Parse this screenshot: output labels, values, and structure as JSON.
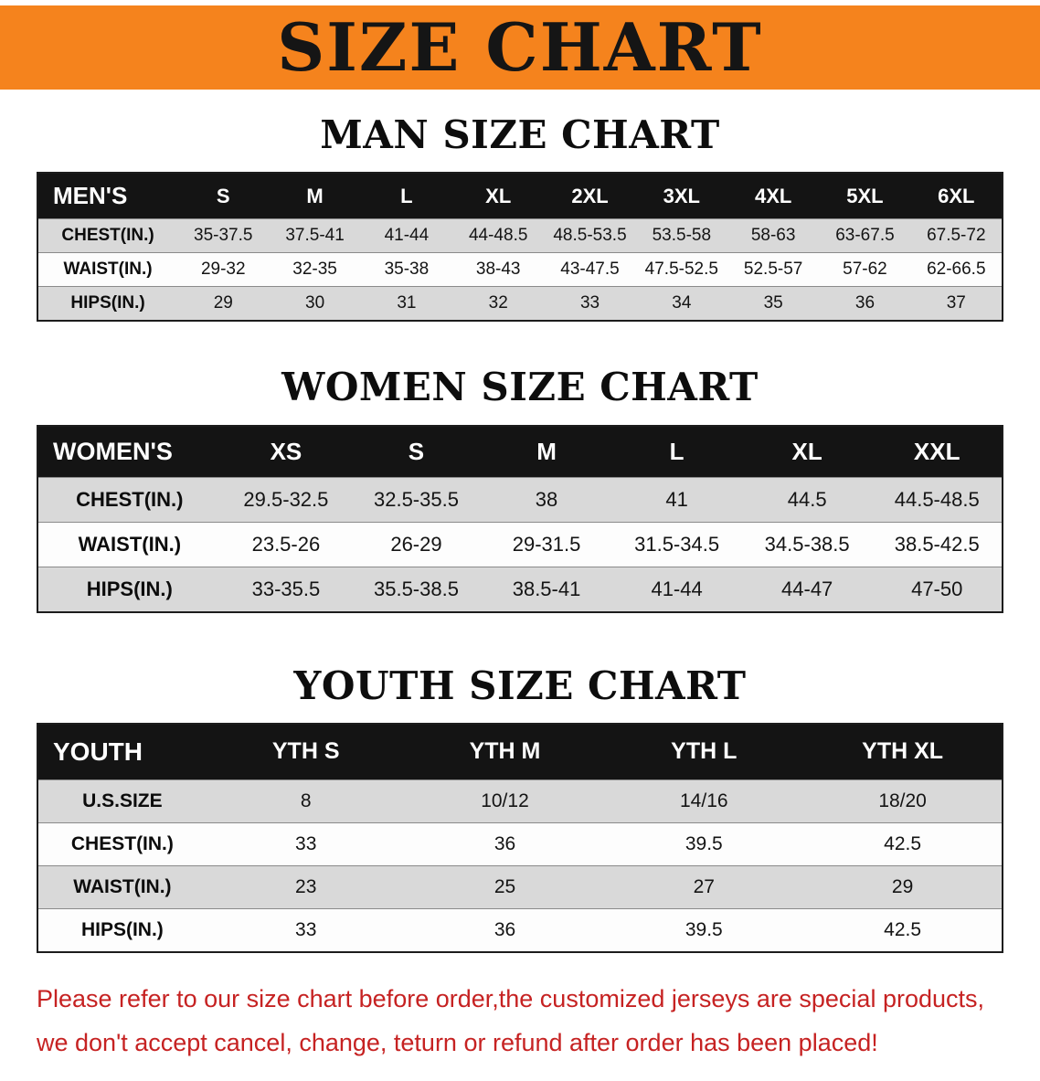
{
  "banner": {
    "title": "SIZE CHART"
  },
  "colors": {
    "banner_bg": "#f5831d",
    "table_header_bg": "#141414",
    "row_alt_bg": "#d9d9d9",
    "note_red": "#c62222"
  },
  "sections": [
    {
      "id": "men",
      "heading": "MAN SIZE CHART",
      "header": [
        "MEN'S",
        "S",
        "M",
        "L",
        "XL",
        "2XL",
        "3XL",
        "4XL",
        "5XL",
        "6XL"
      ],
      "rows": [
        [
          "CHEST(IN.)",
          "35-37.5",
          "37.5-41",
          "41-44",
          "44-48.5",
          "48.5-53.5",
          "53.5-58",
          "58-63",
          "63-67.5",
          "67.5-72"
        ],
        [
          "WAIST(IN.)",
          "29-32",
          "32-35",
          "35-38",
          "38-43",
          "43-47.5",
          "47.5-52.5",
          "52.5-57",
          "57-62",
          "62-66.5"
        ],
        [
          "HIPS(IN.)",
          "29",
          "30",
          "31",
          "32",
          "33",
          "34",
          "35",
          "36",
          "37"
        ]
      ]
    },
    {
      "id": "women",
      "heading": "WOMEN SIZE CHART",
      "header": [
        "WOMEN'S",
        "XS",
        "S",
        "M",
        "L",
        "XL",
        "XXL"
      ],
      "rows": [
        [
          "CHEST(IN.)",
          "29.5-32.5",
          "32.5-35.5",
          "38",
          "41",
          "44.5",
          "44.5-48.5"
        ],
        [
          "WAIST(IN.)",
          "23.5-26",
          "26-29",
          "29-31.5",
          "31.5-34.5",
          "34.5-38.5",
          "38.5-42.5"
        ],
        [
          "HIPS(IN.)",
          "33-35.5",
          "35.5-38.5",
          "38.5-41",
          "41-44",
          "44-47",
          "47-50"
        ]
      ]
    },
    {
      "id": "youth",
      "heading": "YOUTH SIZE CHART",
      "header": [
        "YOUTH",
        "YTH S",
        "YTH M",
        "YTH L",
        "YTH XL"
      ],
      "rows": [
        [
          "U.S.SIZE",
          "8",
          "10/12",
          "14/16",
          "18/20"
        ],
        [
          "CHEST(IN.)",
          "33",
          "36",
          "39.5",
          "42.5"
        ],
        [
          "WAIST(IN.)",
          "23",
          "25",
          "27",
          "29"
        ],
        [
          "HIPS(IN.)",
          "33",
          "36",
          "39.5",
          "42.5"
        ]
      ]
    }
  ],
  "footer_note": {
    "line1": "Please refer to our size chart before order,the customized jerseys are special products,",
    "line2": "we don't accept cancel, change, teturn or refund after order has been placed!"
  }
}
